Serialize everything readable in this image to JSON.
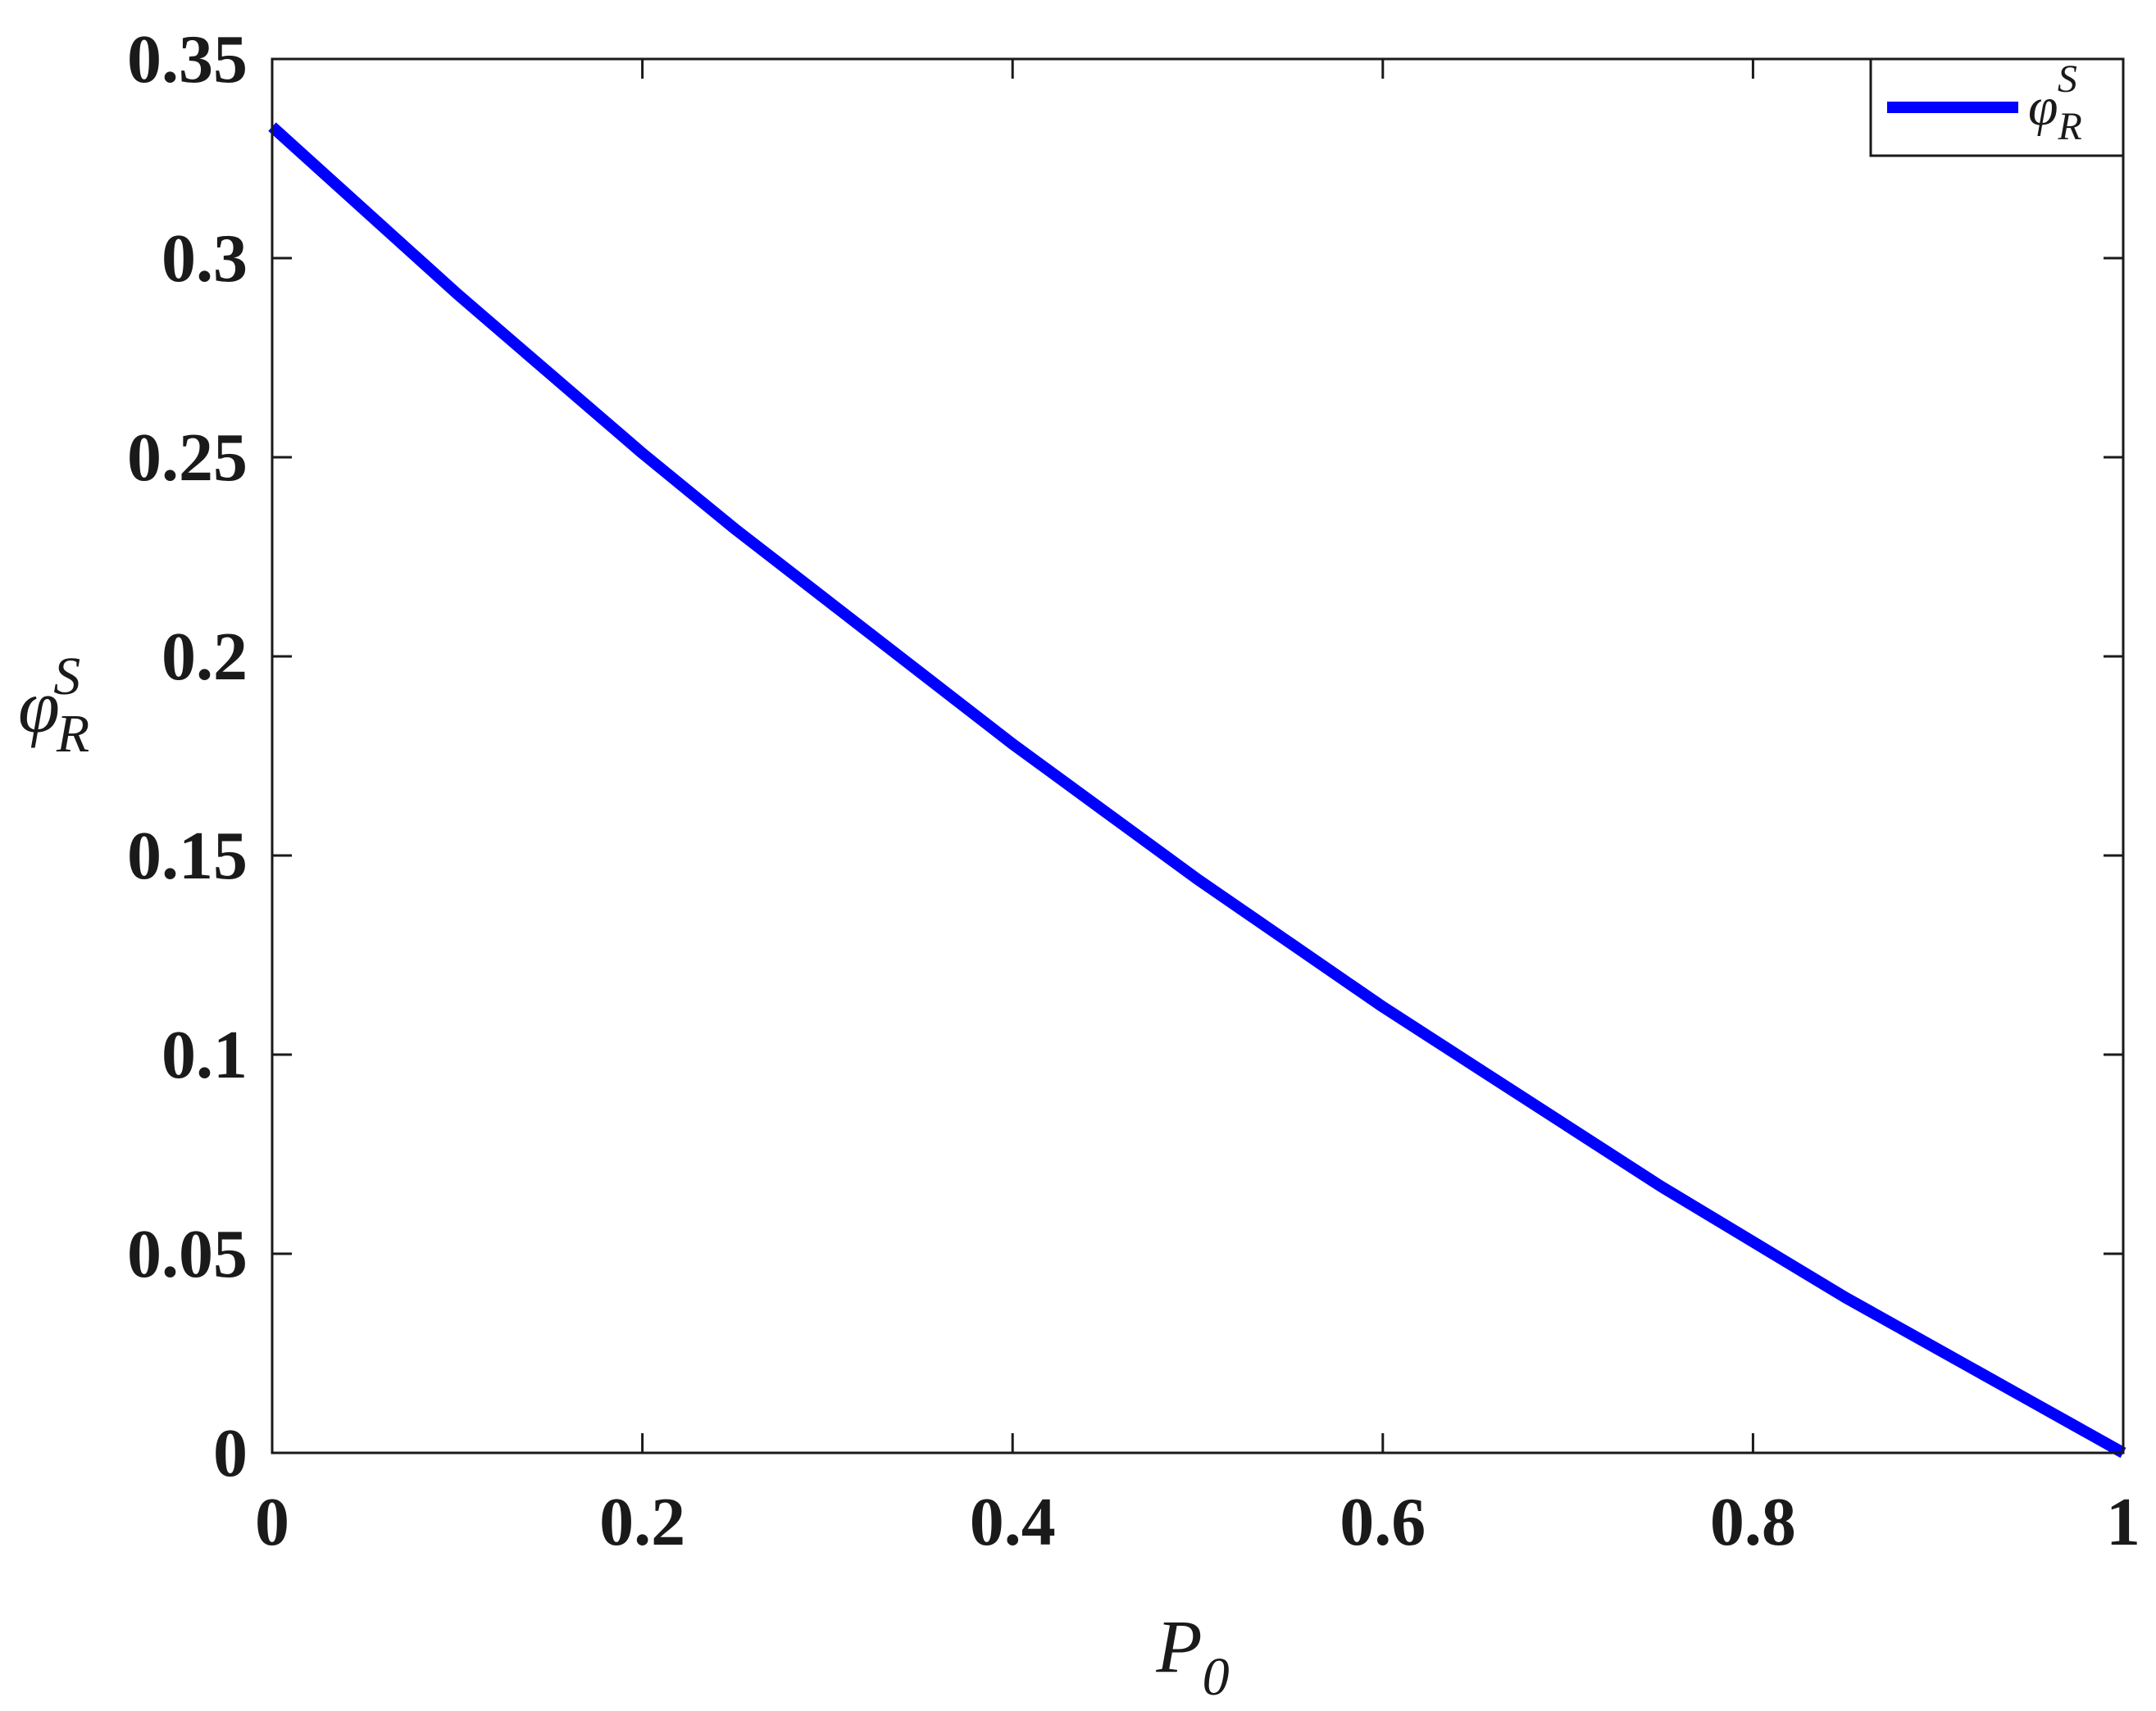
{
  "chart_data": {
    "type": "line",
    "title": "",
    "xlabel": {
      "main": "P",
      "sub": "0"
    },
    "ylabel": {
      "main": "φ",
      "sub": "R",
      "sup": "S"
    },
    "xlim": [
      0,
      1
    ],
    "ylim": [
      0,
      0.35
    ],
    "xticks": [
      0,
      0.2,
      0.4,
      0.6,
      0.8,
      1
    ],
    "xtick_labels": [
      "0",
      "0.2",
      "0.4",
      "0.6",
      "0.8",
      "1"
    ],
    "yticks": [
      0,
      0.05,
      0.1,
      0.15,
      0.2,
      0.25,
      0.3,
      0.35
    ],
    "ytick_labels": [
      "0",
      "0.05",
      "0.1",
      "0.15",
      "0.2",
      "0.25",
      "0.3",
      "0.35"
    ],
    "grid": false,
    "legend": {
      "placement": "top-right",
      "entries": [
        {
          "main": "φ",
          "sub": "R",
          "sup": "S"
        }
      ]
    },
    "series": [
      {
        "color": "#0000ff",
        "x": [
          0,
          0.05,
          0.1,
          0.15,
          0.2,
          0.25,
          0.3,
          0.35,
          0.4,
          0.45,
          0.5,
          0.55,
          0.6,
          0.65,
          0.7,
          0.75,
          0.8,
          0.85,
          0.9,
          0.95,
          1
        ],
        "y": [
          0.333,
          0.312,
          0.291,
          0.271,
          0.251,
          0.232,
          0.214,
          0.196,
          0.178,
          0.161,
          0.144,
          0.128,
          0.112,
          0.097,
          0.082,
          0.067,
          0.053,
          0.039,
          0.026,
          0.013,
          0
        ]
      }
    ]
  }
}
